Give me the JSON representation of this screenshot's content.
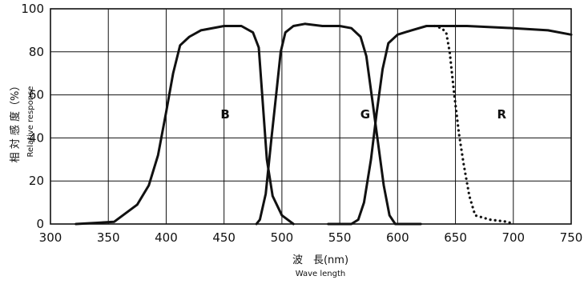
{
  "chart_data": {
    "type": "line",
    "title": "",
    "xlabel": "波　長(nm)",
    "xlabel_sub": "Wave length",
    "ylabel": "相 対 感 度（%）",
    "ylabel_sub": "Relative response",
    "xlim": [
      300,
      750
    ],
    "ylim": [
      0,
      100
    ],
    "xticks": [
      300,
      350,
      400,
      450,
      500,
      550,
      600,
      650,
      700,
      750
    ],
    "yticks": [
      0,
      20,
      40,
      60,
      80,
      100
    ],
    "grid": true,
    "legend": "none",
    "series": [
      {
        "name": "B",
        "style": "solid",
        "color": "#111111",
        "points": [
          [
            322,
            0
          ],
          [
            355,
            1
          ],
          [
            375,
            9
          ],
          [
            385,
            18
          ],
          [
            393,
            32
          ],
          [
            400,
            52
          ],
          [
            406,
            70
          ],
          [
            412,
            83
          ],
          [
            420,
            87
          ],
          [
            430,
            90
          ],
          [
            450,
            92
          ],
          [
            465,
            92
          ],
          [
            475,
            89
          ],
          [
            480,
            82
          ],
          [
            483,
            60
          ],
          [
            487,
            30
          ],
          [
            492,
            13
          ],
          [
            500,
            4
          ],
          [
            510,
            0
          ]
        ]
      },
      {
        "name": "G",
        "style": "solid",
        "color": "#111111",
        "points": [
          [
            478,
            0
          ],
          [
            481,
            2
          ],
          [
            486,
            14
          ],
          [
            491,
            40
          ],
          [
            495,
            60
          ],
          [
            499,
            80
          ],
          [
            503,
            89
          ],
          [
            510,
            92
          ],
          [
            520,
            93
          ],
          [
            535,
            92
          ],
          [
            550,
            92
          ],
          [
            560,
            91
          ],
          [
            568,
            87
          ],
          [
            573,
            78
          ],
          [
            578,
            58
          ],
          [
            583,
            38
          ],
          [
            588,
            18
          ],
          [
            593,
            4
          ],
          [
            598,
            0
          ],
          [
            620,
            0
          ]
        ]
      },
      {
        "name": "R",
        "style": "solid",
        "color": "#111111",
        "points": [
          [
            540,
            0
          ],
          [
            560,
            0
          ],
          [
            566,
            2
          ],
          [
            571,
            10
          ],
          [
            577,
            30
          ],
          [
            582,
            52
          ],
          [
            587,
            72
          ],
          [
            592,
            84
          ],
          [
            600,
            88
          ],
          [
            612,
            90
          ],
          [
            625,
            92
          ],
          [
            640,
            92
          ],
          [
            660,
            92
          ],
          [
            700,
            91
          ],
          [
            730,
            90
          ],
          [
            750,
            88
          ]
        ]
      },
      {
        "name": "R",
        "style": "dotted",
        "color": "#111111",
        "points": [
          [
            632,
            92
          ],
          [
            638,
            91
          ],
          [
            642,
            89
          ],
          [
            645,
            80
          ],
          [
            649,
            60
          ],
          [
            653,
            42
          ],
          [
            657,
            28
          ],
          [
            662,
            13
          ],
          [
            667,
            4
          ],
          [
            680,
            2
          ],
          [
            695,
            1
          ],
          [
            700,
            0
          ]
        ]
      }
    ],
    "curve_labels": [
      {
        "text": "B",
        "x": 451,
        "y": 51
      },
      {
        "text": "G",
        "x": 572,
        "y": 51
      },
      {
        "text": "R",
        "x": 690,
        "y": 51
      }
    ]
  }
}
